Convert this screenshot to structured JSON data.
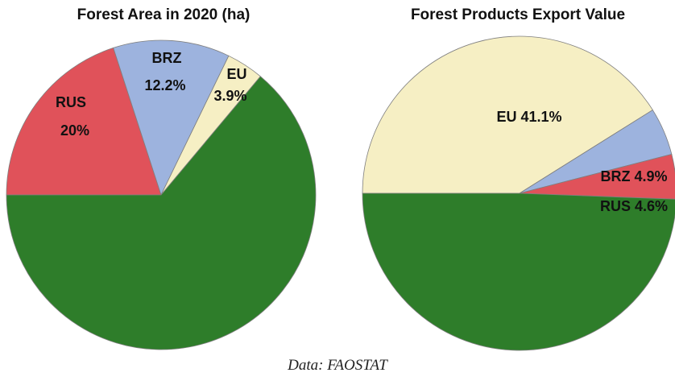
{
  "chart_data": [
    {
      "type": "pie",
      "title": "Forest Area in 2020 (ha)",
      "slices": [
        {
          "label": "RUS",
          "value": 20.0,
          "value_text": "20%",
          "color": "#e0525a"
        },
        {
          "label": "BRZ",
          "value": 12.2,
          "value_text": "12.2%",
          "color": "#9db3de"
        },
        {
          "label": "EU",
          "value": 3.9,
          "value_text": "3.9%",
          "color": "#f6efc4"
        },
        {
          "label": "",
          "value": 63.9,
          "value_text": "",
          "color": "#2e7d2a"
        }
      ]
    },
    {
      "type": "pie",
      "title": "Forest Products Export Value",
      "slices": [
        {
          "label": "EU",
          "value": 41.1,
          "value_text": "41.1%",
          "color": "#f6efc4"
        },
        {
          "label": "BRZ",
          "value": 4.9,
          "value_text": "4.9%",
          "color": "#9db3de"
        },
        {
          "label": "RUS",
          "value": 4.6,
          "value_text": "4.6%",
          "color": "#e0525a"
        },
        {
          "label": "",
          "value": 49.4,
          "value_text": "",
          "color": "#2e7d2a"
        }
      ]
    }
  ],
  "source": "Data: FAOSTAT"
}
